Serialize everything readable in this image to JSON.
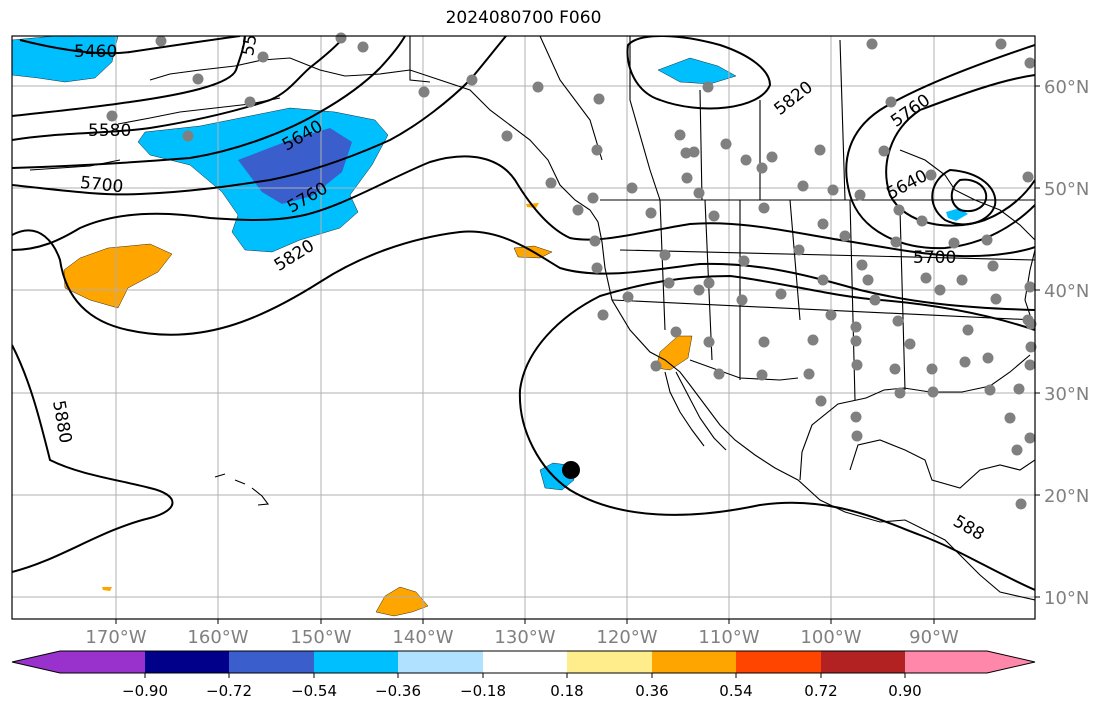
{
  "title": "2024080700 F060",
  "map": {
    "lon_labels": [
      "170°W",
      "160°W",
      "150°W",
      "140°W",
      "130°W",
      "120°W",
      "110°W",
      "100°W",
      "90°W"
    ],
    "lat_labels": [
      "60°N",
      "50°N",
      "40°N",
      "30°N",
      "20°N",
      "10°N"
    ],
    "contour_labels": [
      "5460",
      "55",
      "5580",
      "5640",
      "5700",
      "5760",
      "5820",
      "5880",
      "5820",
      "5760",
      "5640",
      "5700",
      "588"
    ],
    "axis_label_color": "#808080",
    "station_marker_color": "#808080",
    "storm_marker_color": "#000000"
  },
  "colorbar": {
    "ticks": [
      "−0.90",
      "−0.72",
      "−0.54",
      "−0.36",
      "−0.18",
      "0.18",
      "0.36",
      "0.54",
      "0.72",
      "0.90"
    ],
    "colors": [
      "#9932cc",
      "#00008b",
      "#3a5fcd",
      "#00bfff",
      "#b0e2ff",
      "#ffffff",
      "#ffec8b",
      "#ffa500",
      "#ff4500",
      "#b22222",
      "#ff88aa"
    ]
  }
}
